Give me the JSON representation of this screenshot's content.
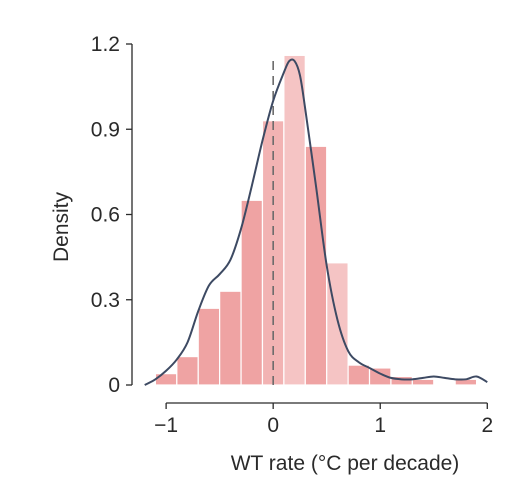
{
  "chart_data": {
    "type": "bar",
    "xlabel": "WT rate (°C per decade)",
    "ylabel": "Density",
    "xlim": [
      -1.3,
      2.1
    ],
    "ylim": [
      0,
      1.2
    ],
    "xticks": [
      -1,
      0,
      1,
      2
    ],
    "xtick_labels": [
      "−1",
      "0",
      "1",
      "2"
    ],
    "yticks": [
      0,
      0.3,
      0.6,
      0.9,
      1.2
    ],
    "ytick_labels": [
      "0",
      "0.3",
      "0.6",
      "0.9",
      "1.2"
    ],
    "histogram": {
      "bin_width": 0.2,
      "bin_starts": [
        -1.1,
        -0.9,
        -0.7,
        -0.5,
        -0.3,
        -0.1,
        0.1,
        0.3,
        0.5,
        0.7,
        0.9,
        1.1,
        1.3,
        1.7
      ],
      "values": [
        0.04,
        0.1,
        0.27,
        0.33,
        0.65,
        0.93,
        1.16,
        0.84,
        0.43,
        0.07,
        0.06,
        0.03,
        0.02,
        0.02
      ],
      "colors": [
        "#efa3a3",
        "#efa3a3",
        "#efa3a3",
        "#efa3a3",
        "#efa3a3",
        "#f2b3b3",
        "#f5c4c4",
        "#efa3a3",
        "#f5c4c4",
        "#efa3a3",
        "#efa3a3",
        "#efa3a3",
        "#efa3a3",
        "#efa3a3"
      ]
    },
    "density_curve": {
      "x": [
        -1.2,
        -1.1,
        -1.0,
        -0.9,
        -0.8,
        -0.7,
        -0.6,
        -0.5,
        -0.4,
        -0.3,
        -0.2,
        -0.1,
        0.0,
        0.1,
        0.15,
        0.2,
        0.25,
        0.3,
        0.4,
        0.5,
        0.6,
        0.7,
        0.8,
        0.9,
        1.0,
        1.1,
        1.2,
        1.3,
        1.4,
        1.5,
        1.6,
        1.7,
        1.8,
        1.9,
        2.0
      ],
      "y": [
        0.0,
        0.02,
        0.05,
        0.09,
        0.15,
        0.26,
        0.35,
        0.39,
        0.44,
        0.55,
        0.7,
        0.86,
        1.0,
        1.1,
        1.14,
        1.14,
        1.09,
        0.97,
        0.7,
        0.42,
        0.23,
        0.12,
        0.08,
        0.06,
        0.04,
        0.025,
        0.02,
        0.02,
        0.025,
        0.03,
        0.025,
        0.02,
        0.02,
        0.03,
        0.01
      ]
    },
    "reference_line_x": 0,
    "grid": false,
    "colors": {
      "bar": "#efa3a3",
      "curve": "#3d4a63",
      "axis": "#2a2a2a",
      "reference": "#6b6b6b"
    }
  }
}
